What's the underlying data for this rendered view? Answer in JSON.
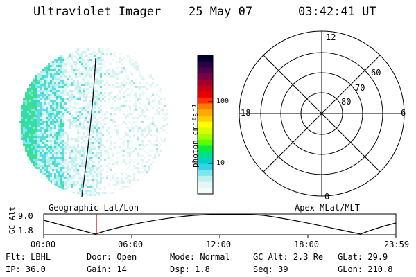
{
  "header": {
    "instrument": "Ultraviolet Imager",
    "date": "25 May 07",
    "time": "03:42:41 UT"
  },
  "colorbar": {
    "unit_label": "photon cm⁻²s⁻¹",
    "ticks": [
      "100",
      "10"
    ],
    "colors": [
      "#000033",
      "#2a0040",
      "#4b0054",
      "#7a0044",
      "#a0002a",
      "#c80014",
      "#e60000",
      "#ff3300",
      "#ff7a00",
      "#ffaa00",
      "#ffd000",
      "#ffff00",
      "#d8ff00",
      "#a0ff00",
      "#5cff00",
      "#00ee44",
      "#00e08a",
      "#00d2c8",
      "#30d6e6",
      "#80e6ee",
      "#bff0f0",
      "#e6f6f6",
      "#f4fbfb"
    ]
  },
  "polar_grid": {
    "mlt_labels": {
      "top": "12",
      "bottom": "0",
      "left": "18",
      "right": "6"
    },
    "lat_labels": [
      "60",
      "70",
      "80"
    ]
  },
  "timeline": {
    "left_caption": "Geographic Lat/Lon",
    "right_caption": "Apex MLat/MLT",
    "axis_title": "GC Alt",
    "y_max_label": "9.0",
    "y_min_label": "1.8",
    "time_ticks": [
      "00:00",
      "06:00",
      "12:00",
      "18:00",
      "23:59"
    ]
  },
  "status": {
    "row1": [
      {
        "key": "Flt:",
        "value": "LBHL"
      },
      {
        "key": "Door:",
        "value": "Open"
      },
      {
        "key": "Mode:",
        "value": "Normal"
      },
      {
        "key": "GC Alt:",
        "value": "2.3 Re"
      },
      {
        "key": "GLat:",
        "value": "29.9"
      }
    ],
    "row2": [
      {
        "key": "IP:",
        "value": "36.0"
      },
      {
        "key": "Gain:",
        "value": "14"
      },
      {
        "key": "Dsp:",
        "value": "1.8"
      },
      {
        "key": "Seq:",
        "value": "39"
      },
      {
        "key": "GLon:",
        "value": "210.8"
      }
    ]
  }
}
